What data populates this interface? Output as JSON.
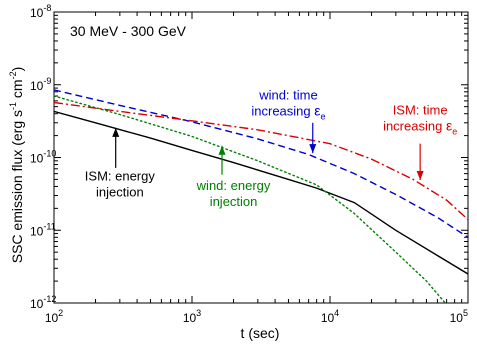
{
  "chart_data": {
    "type": "line",
    "title": "30 MeV - 300 GeV",
    "xlabel": "t (sec)",
    "ylabel": "SSC emission flux (erg s",
    "ylabel_sup1": "-1",
    "ylabel_mid": " cm",
    "ylabel_sup2": "-2",
    "ylabel_end": ")",
    "xscale": "log",
    "yscale": "log",
    "xlim": [
      100,
      100000
    ],
    "ylim": [
      1e-12,
      1e-08
    ],
    "x_ticks": [
      {
        "value": 100,
        "base": "10",
        "exp": "2"
      },
      {
        "value": 1000,
        "base": "10",
        "exp": "3"
      },
      {
        "value": 10000,
        "base": "10",
        "exp": "4"
      },
      {
        "value": 100000,
        "base": "10",
        "exp": "5"
      }
    ],
    "y_ticks": [
      {
        "value": 1e-12,
        "base": "10",
        "exp": "-12"
      },
      {
        "value": 1e-11,
        "base": "10",
        "exp": "-11"
      },
      {
        "value": 1e-10,
        "base": "10",
        "exp": "-10"
      },
      {
        "value": 1e-09,
        "base": "10",
        "exp": "-9"
      },
      {
        "value": 1e-08,
        "base": "10",
        "exp": "-8"
      }
    ],
    "grid": false,
    "legend": "none",
    "series": [
      {
        "key": "ism-energy-injection",
        "color": "#000000",
        "style": "solid",
        "x": [
          100,
          200,
          500,
          1000,
          2000,
          5000,
          8000,
          15000,
          30000,
          60000,
          100000
        ],
        "y": [
          4.3e-10,
          3e-10,
          1.85e-10,
          1.25e-10,
          8.5e-11,
          5e-11,
          3.8e-11,
          2.4e-11,
          1e-11,
          4.5e-12,
          2.5e-12
        ]
      },
      {
        "key": "wind-time-increasing",
        "color": "#0000cc",
        "style": "dashed",
        "x": [
          100,
          300,
          1000,
          3000,
          7000,
          15000,
          30000,
          60000,
          100000
        ],
        "y": [
          8.5e-10,
          5.2e-10,
          3.1e-10,
          1.8e-10,
          1.1e-10,
          6e-11,
          3.1e-11,
          1.5e-11,
          8e-12
        ]
      },
      {
        "key": "ism-time-increasing",
        "color": "#dd0000",
        "style": "dashdot",
        "x": [
          100,
          300,
          1000,
          3000,
          10000,
          20000,
          40000,
          70000,
          100000
        ],
        "y": [
          5.7e-10,
          4.3e-10,
          3.2e-10,
          2.4e-10,
          1.55e-10,
          9.5e-11,
          5e-11,
          2.6e-11,
          1.4e-11
        ]
      },
      {
        "key": "wind-energy-injection",
        "color": "#008000",
        "style": "dotted",
        "x": [
          100,
          300,
          1000,
          3000,
          8000,
          15000,
          30000,
          50000,
          70000
        ],
        "y": [
          7e-10,
          3.9e-10,
          1.95e-10,
          9e-11,
          4.2e-11,
          1.7e-11,
          5e-12,
          2e-12,
          9.5e-13
        ]
      }
    ],
    "annotations": [
      {
        "key": "wind-time",
        "color": "#0000cc",
        "lines": [
          "wind: time",
          "increasing "
        ],
        "symbol": "ε",
        "subscript": "e",
        "label_anchor": [
          5000,
          6.3e-10
        ],
        "arrow_from": [
          7500,
          3e-10
        ],
        "arrow_to": [
          7500,
          1.15e-10
        ]
      },
      {
        "key": "ism-time",
        "color": "#dd0000",
        "lines": [
          "ISM: time",
          "increasing "
        ],
        "symbol": "ε",
        "subscript": "e",
        "label_anchor": [
          45000,
          3.9e-10
        ],
        "arrow_from": [
          45000,
          1.55e-10
        ],
        "arrow_to": [
          45000,
          4.9e-11
        ]
      },
      {
        "key": "ism-energy",
        "color": "#000000",
        "lines": [
          "ISM: energy",
          "injection"
        ],
        "label_anchor": [
          300,
          4.8e-11
        ],
        "arrow_from": [
          280,
          7.2e-11
        ],
        "arrow_to": [
          280,
          2.55e-10
        ]
      },
      {
        "key": "wind-energy",
        "color": "#008000",
        "lines": [
          "wind: energy",
          "injection"
        ],
        "label_anchor": [
          2000,
          3.6e-11
        ],
        "arrow_from": [
          1650,
          5.8e-11
        ],
        "arrow_to": [
          1650,
          1.45e-10
        ]
      }
    ]
  }
}
